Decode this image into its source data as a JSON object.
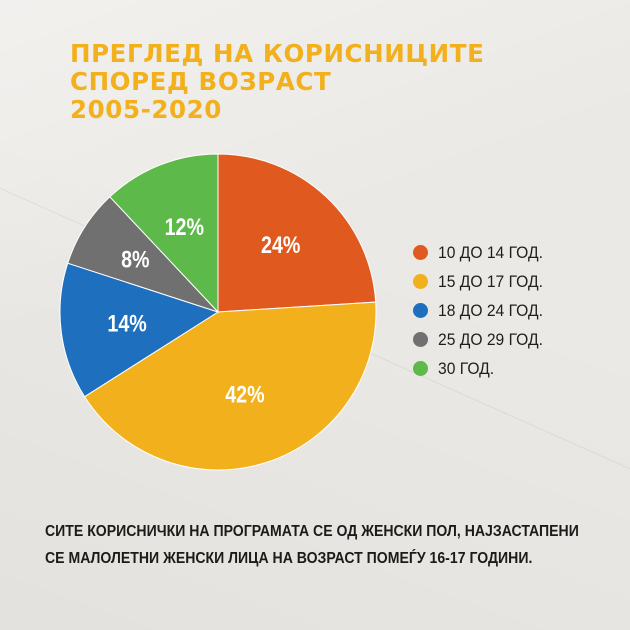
{
  "title_lines": [
    "ПРЕГЛЕД НА КОРИСНИЦИТЕ",
    "СПОРЕД ВОЗРАСТ",
    "2005-2020"
  ],
  "colors": {
    "title": "#f2b01c",
    "background": "#ebe9e5",
    "text": "#1e1e1e"
  },
  "chart_data": {
    "type": "pie",
    "start_angle_deg": 0,
    "direction": "clockwise",
    "slices": [
      {
        "label": "10 ДО 14 ГОД.",
        "value": 24,
        "display": "24%",
        "color": "#e05a20"
      },
      {
        "label": "15 ДО 17 ГОД.",
        "value": 42,
        "display": "42%",
        "color": "#f2b01c"
      },
      {
        "label": "18 ДО 24 ГОД.",
        "value": 14,
        "display": "14%",
        "color": "#1f6fbf"
      },
      {
        "label": "25 ДО 29 ГОД.",
        "value": 8,
        "display": "8%",
        "color": "#707070"
      },
      {
        "label": "30 ГОД.",
        "value": 12,
        "display": "12%",
        "color": "#5cb94a"
      }
    ],
    "legend_position": "right"
  },
  "footer_lines": [
    "СИТЕ КОРИСНИЧКИ НА ПРОГРАМАТА СЕ ОД ЖЕНСКИ ПОЛ, НАЈЗАСТАПЕНИ",
    "СЕ МАЛОЛЕТНИ ЖЕНСКИ ЛИЦА НА ВОЗРАСТ ПОМЕЃУ 16-17 ГОДИНИ."
  ]
}
